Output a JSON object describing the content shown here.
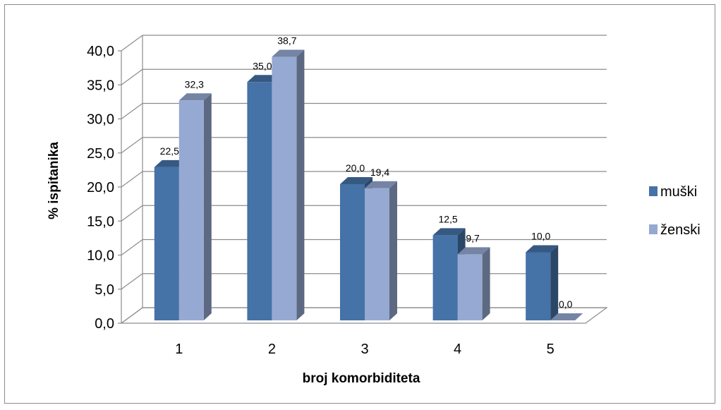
{
  "chart_data": {
    "type": "bar",
    "style": "3d-clustered-column",
    "categories": [
      "1",
      "2",
      "3",
      "4",
      "5"
    ],
    "series": [
      {
        "name": "muški",
        "values": [
          22.5,
          35.0,
          20.0,
          12.5,
          10.0
        ],
        "labels": [
          "22,5",
          "35,0",
          "20,0",
          "12,5",
          "10,0"
        ],
        "color": "#4572a7"
      },
      {
        "name": "ženski",
        "values": [
          32.3,
          38.7,
          19.4,
          9.7,
          0.0
        ],
        "labels": [
          "32,3",
          "38,7",
          "19,4",
          "9,7",
          "0,0"
        ],
        "color": "#96a9d2"
      }
    ],
    "xlabel": "broj komorbiditeta",
    "ylabel": "% ispitanika",
    "ylim": [
      0,
      40
    ],
    "yticks": [
      "0,0",
      "5,0",
      "10,0",
      "15,0",
      "20,0",
      "25,0",
      "30,0",
      "35,0",
      "40,0"
    ],
    "grid": true,
    "legend_position": "right"
  }
}
